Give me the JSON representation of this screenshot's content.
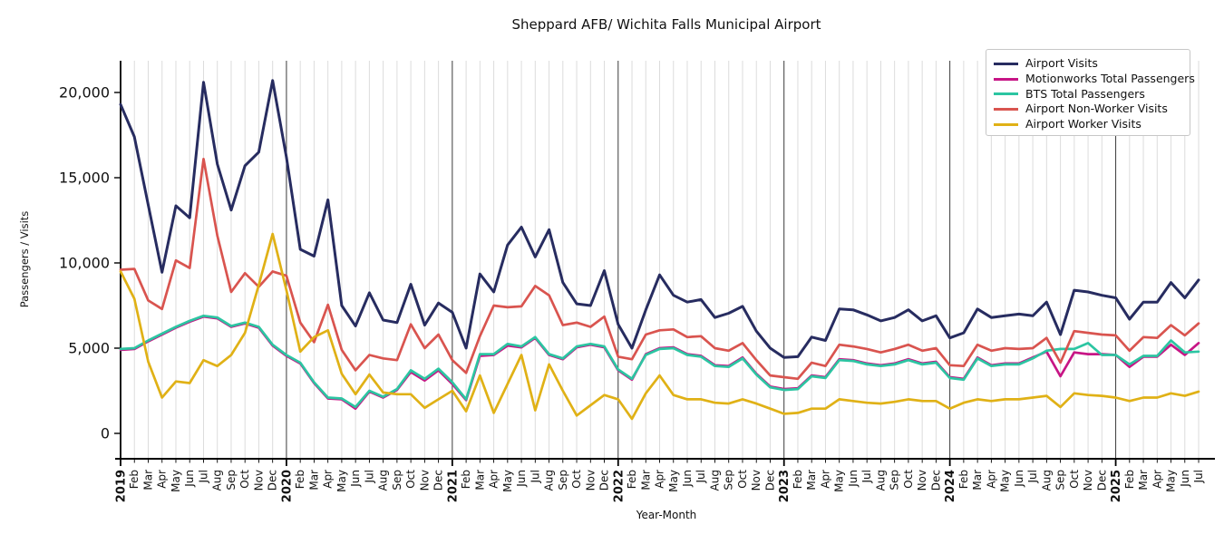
{
  "chart_data": {
    "type": "line",
    "title": "Sheppard AFB/ Wichita Falls Municipal Airport",
    "xlabel": "Year-Month",
    "ylabel": "Passengers / Visits",
    "ylim": [
      -1400,
      21900
    ],
    "yticks": [
      0,
      5000,
      10000,
      15000,
      20000
    ],
    "ytick_labels": [
      "0",
      "5,000",
      "10,000",
      "15,000",
      "20,000"
    ],
    "grid": "vertical gridline every month; dark vertical line at each January",
    "legend_position": "upper right",
    "x_range": "Jan 2019 - Jul 2025 (monthly)",
    "xtick_labels": [
      "2019",
      "Feb",
      "Mar",
      "Apr",
      "May",
      "Jun",
      "Jul",
      "Aug",
      "Sep",
      "Oct",
      "Nov",
      "Dec",
      "2020",
      "Feb",
      "Mar",
      "Apr",
      "May",
      "Jun",
      "Jul",
      "Aug",
      "Sep",
      "Oct",
      "Nov",
      "Dec",
      "2021",
      "Feb",
      "Mar",
      "Apr",
      "May",
      "Jun",
      "Jul",
      "Aug",
      "Sep",
      "Oct",
      "Nov",
      "Dec",
      "2022",
      "Feb",
      "Mar",
      "Apr",
      "May",
      "Jun",
      "Jul",
      "Aug",
      "Sep",
      "Oct",
      "Nov",
      "Dec",
      "2023",
      "Feb",
      "Mar",
      "Apr",
      "May",
      "Jun",
      "Jul",
      "Aug",
      "Sep",
      "Oct",
      "Nov",
      "Dec",
      "2024",
      "Feb",
      "Mar",
      "Apr",
      "May",
      "Jun",
      "Jul",
      "Aug",
      "Sep",
      "Oct",
      "Nov",
      "Dec",
      "2025",
      "Feb",
      "Mar",
      "Apr",
      "May",
      "Jun",
      "Jul"
    ],
    "series": [
      {
        "name": "Airport Visits",
        "color": "#272c60",
        "values": [
          19300,
          17400,
          13400,
          9450,
          13350,
          12650,
          20600,
          15800,
          13100,
          15700,
          16500,
          20700,
          16200,
          10800,
          10400,
          13700,
          7500,
          6300,
          8250,
          6650,
          6500,
          8750,
          6350,
          7650,
          7100,
          5000,
          9350,
          8300,
          11050,
          12100,
          10350,
          11950,
          8850,
          7600,
          7500,
          9550,
          6400,
          5000,
          7250,
          9300,
          8100,
          7700,
          7850,
          6800,
          7050,
          7450,
          6000,
          5000,
          4450,
          4500,
          5650,
          5450,
          7300,
          7250,
          6950,
          6600,
          6800,
          7250,
          6600,
          6900,
          5600,
          5900,
          7300,
          6800,
          6900,
          7000,
          6900,
          7700,
          5800,
          8400,
          8300,
          8100,
          7950,
          6700,
          7700,
          7700,
          8850,
          7950,
          9000
        ]
      },
      {
        "name": "Motionworks Total Passengers",
        "color": "#c71585",
        "values": [
          4900,
          4950,
          5400,
          5800,
          6200,
          6550,
          6850,
          6750,
          6250,
          6450,
          6200,
          5150,
          4550,
          4100,
          2950,
          2050,
          2000,
          1450,
          2450,
          2100,
          2550,
          3600,
          3100,
          3700,
          2900,
          1950,
          4550,
          4600,
          5150,
          5050,
          5600,
          4600,
          4350,
          5050,
          5200,
          5050,
          3700,
          3150,
          4650,
          5000,
          5050,
          4650,
          4550,
          4000,
          3950,
          4450,
          3500,
          2750,
          2600,
          2650,
          3400,
          3300,
          4350,
          4300,
          4100,
          4000,
          4100,
          4350,
          4100,
          4200,
          3300,
          3200,
          4450,
          4000,
          4100,
          4100,
          4450,
          4800,
          3350,
          4750,
          4650,
          4650,
          4600,
          3900,
          4500,
          4500,
          5200,
          4600,
          5300
        ]
      },
      {
        "name": "BTS Total Passengers",
        "color": "#2cc5a2",
        "values": [
          4950,
          5000,
          5450,
          5850,
          6250,
          6600,
          6900,
          6800,
          6300,
          6500,
          6250,
          5200,
          4600,
          4150,
          3000,
          2100,
          2050,
          1550,
          2500,
          2150,
          2600,
          3700,
          3200,
          3800,
          3000,
          2000,
          4650,
          4650,
          5250,
          5100,
          5650,
          4650,
          4400,
          5100,
          5250,
          5100,
          3750,
          3200,
          4600,
          4950,
          5000,
          4600,
          4500,
          3950,
          3900,
          4400,
          3450,
          2700,
          2550,
          2600,
          3350,
          3250,
          4300,
          4250,
          4050,
          3950,
          4050,
          4300,
          4050,
          4150,
          3250,
          3150,
          4400,
          3950,
          4050,
          4050,
          4400,
          4850,
          4950,
          4950,
          5300,
          4600,
          4600,
          4050,
          4550,
          4550,
          5450,
          4750,
          4800
        ]
      },
      {
        "name": "Airport Non-Worker Visits",
        "color": "#d9544f",
        "values": [
          9600,
          9650,
          7800,
          7300,
          10150,
          9700,
          16100,
          11600,
          8300,
          9400,
          8600,
          9500,
          9250,
          6500,
          5350,
          7550,
          4900,
          3700,
          4600,
          4400,
          4300,
          6400,
          5000,
          5800,
          4300,
          3550,
          5700,
          7500,
          7400,
          7450,
          8650,
          8100,
          6350,
          6500,
          6250,
          6850,
          4500,
          4350,
          5800,
          6050,
          6100,
          5650,
          5700,
          5000,
          4850,
          5300,
          4300,
          3400,
          3300,
          3200,
          4150,
          3950,
          5200,
          5100,
          4950,
          4750,
          4950,
          5200,
          4850,
          5000,
          4000,
          3950,
          5200,
          4850,
          5000,
          4950,
          5000,
          5600,
          4150,
          6000,
          5900,
          5800,
          5750,
          4850,
          5650,
          5600,
          6350,
          5750,
          6450
        ]
      },
      {
        "name": "Airport Worker Visits",
        "color": "#e0b116",
        "values": [
          9500,
          7900,
          4200,
          2100,
          3050,
          2950,
          4300,
          3950,
          4600,
          5900,
          8700,
          11700,
          8400,
          4800,
          5650,
          6050,
          3500,
          2300,
          3450,
          2400,
          2300,
          2300,
          1500,
          2000,
          2500,
          1300,
          3400,
          1200,
          2900,
          4600,
          1350,
          4050,
          2500,
          1050,
          1650,
          2250,
          2000,
          850,
          2350,
          3400,
          2250,
          2000,
          2000,
          1800,
          1750,
          2000,
          1750,
          1450,
          1150,
          1200,
          1450,
          1450,
          2000,
          1900,
          1800,
          1750,
          1850,
          2000,
          1900,
          1900,
          1450,
          1800,
          2000,
          1900,
          2000,
          2000,
          2100,
          2200,
          1550,
          2350,
          2250,
          2200,
          2100,
          1900,
          2100,
          2100,
          2350,
          2200,
          2450
        ]
      }
    ]
  }
}
